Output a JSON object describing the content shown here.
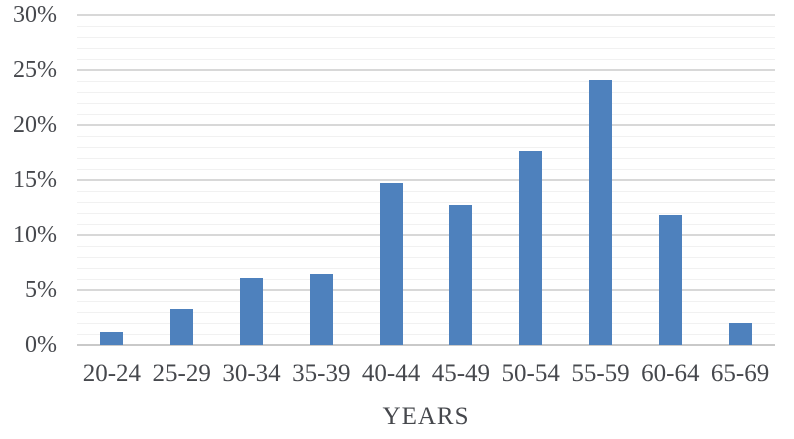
{
  "chart_data": {
    "type": "bar",
    "title": "",
    "xlabel": "YEARS",
    "ylabel": "",
    "categories": [
      "20-24",
      "25-29",
      "30-34",
      "35-39",
      "40-44",
      "45-49",
      "50-54",
      "55-59",
      "60-64",
      "65-69"
    ],
    "values": [
      1.2,
      3.3,
      6.1,
      6.5,
      14.7,
      12.7,
      17.6,
      24.1,
      11.8,
      2.0
    ],
    "value_unit": "%",
    "ylim": [
      0,
      30
    ],
    "y_major_tick": 5,
    "y_minor_tick": 1,
    "y_tick_labels": [
      "0%",
      "5%",
      "10%",
      "15%",
      "20%",
      "25%",
      "30%"
    ],
    "grid": "horizontal major and minor",
    "legend": false,
    "colors": {
      "bar": "#4e81bd",
      "major_grid": "#d8d8d8",
      "minor_grid": "#f1f1f1",
      "axis_line": "#c9c9c9",
      "label_text": "#46484d",
      "background": "#ffffff"
    }
  }
}
